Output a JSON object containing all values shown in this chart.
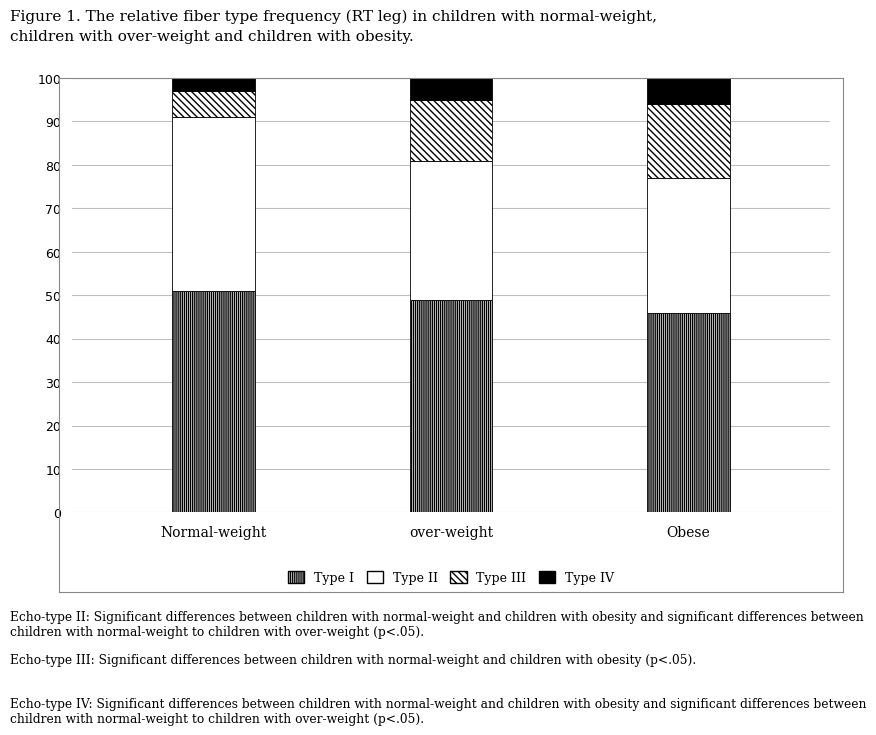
{
  "categories": [
    "Normal-weight",
    "over-weight",
    "Obese"
  ],
  "type_I": [
    51,
    49,
    46
  ],
  "type_II": [
    40,
    32,
    31
  ],
  "type_III": [
    6,
    14,
    17
  ],
  "type_IV": [
    3,
    5,
    6
  ],
  "title_line1": "Figure 1. The relative fiber type frequency (RT leg) in children with normal-weight,",
  "title_line2": "children with over-weight and children with obesity.",
  "ylim": [
    0,
    100
  ],
  "yticks": [
    0,
    10,
    20,
    30,
    40,
    50,
    60,
    70,
    80,
    90,
    100
  ],
  "legend_labels": [
    "Type I",
    "Type II",
    "Type III",
    "Type IV"
  ],
  "footnotes": [
    "Echo-type II: Significant differences between children with normal-weight and children with obesity and significant differences between children with normal-weight to children with over-weight (p<.05).",
    "Echo-type III: Significant differences between children with normal-weight and children with obesity (p<.05).",
    "Echo-type IV: Significant differences between children with normal-weight and children with obesity and significant differences between children with normal-weight to children with over-weight (p<.05)."
  ],
  "bar_width": 0.35,
  "background_color": "#ffffff",
  "grid_color": "#c0c0c0"
}
